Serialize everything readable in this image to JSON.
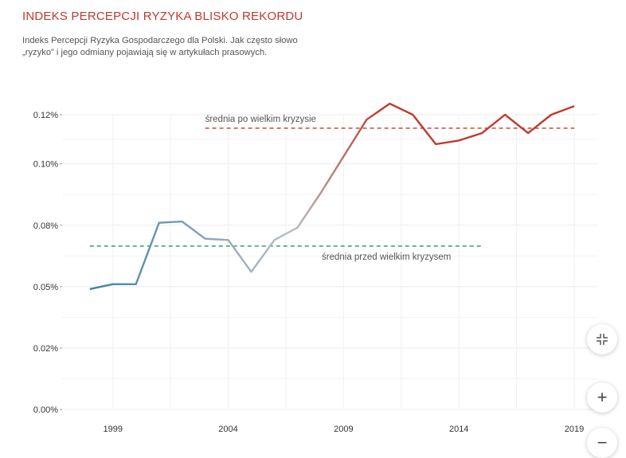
{
  "header": {
    "title": "INDEKS PERCEPCJI RYZYKA BLISKO REKORDU",
    "subtitle_line1": "Indeks Percepcji Ryzyka Gospodarczego dla Polski. Jak często słowo",
    "subtitle_line2": "„ryzyko” i jego odmiany pojawiają się w artykułach prasowych."
  },
  "chart_data": {
    "type": "line",
    "title": "INDEKS PERCEPCJI RYZYKA BLISKO REKORDU",
    "x": [
      1998,
      1999,
      2000,
      2001,
      2002,
      2003,
      2004,
      2005,
      2006,
      2007,
      2008,
      2009,
      2010,
      2011,
      2012,
      2013,
      2014,
      2015,
      2016,
      2017,
      2018,
      2019
    ],
    "series": [
      {
        "values": [
          0.049,
          0.051,
          0.051,
          0.076,
          0.0765,
          0.0695,
          0.069,
          0.056,
          0.069,
          0.074,
          0.088,
          0.103,
          0.118,
          0.1245,
          0.12,
          0.108,
          0.1095,
          0.1125,
          0.12,
          0.1125,
          0.12,
          0.1235
        ]
      }
    ],
    "yticks": [
      0.0,
      0.025,
      0.05,
      0.075,
      0.1,
      0.12
    ],
    "ytick_labels": [
      "0.00%",
      "0.02%",
      "0.05%",
      "0.08%",
      "0.10%",
      "0.12%"
    ],
    "xticks": [
      1999,
      2004,
      2009,
      2014,
      2019
    ],
    "xtick_labels": [
      "1999",
      "2004",
      "2009",
      "2014",
      "2019"
    ],
    "xlim": [
      1996.8,
      2020.0
    ],
    "grid": true,
    "colors": {
      "start": "#3a7fa6",
      "mid": "#b8bfc6",
      "end": "#c0392b"
    },
    "reference_lines": [
      {
        "label": "średnia po wielkim kryzysie",
        "value": 0.1145,
        "from": 2003,
        "to": 2019,
        "color": "#c0392b"
      },
      {
        "label": "średnia przed wielkim kryzysem",
        "value": 0.0665,
        "from": 1998,
        "to": 2015,
        "color": "#2e8b70"
      }
    ]
  },
  "controls": {
    "collapse_icon": "collapse-icon",
    "zoom_in_label": "+",
    "zoom_out_label": "−"
  }
}
